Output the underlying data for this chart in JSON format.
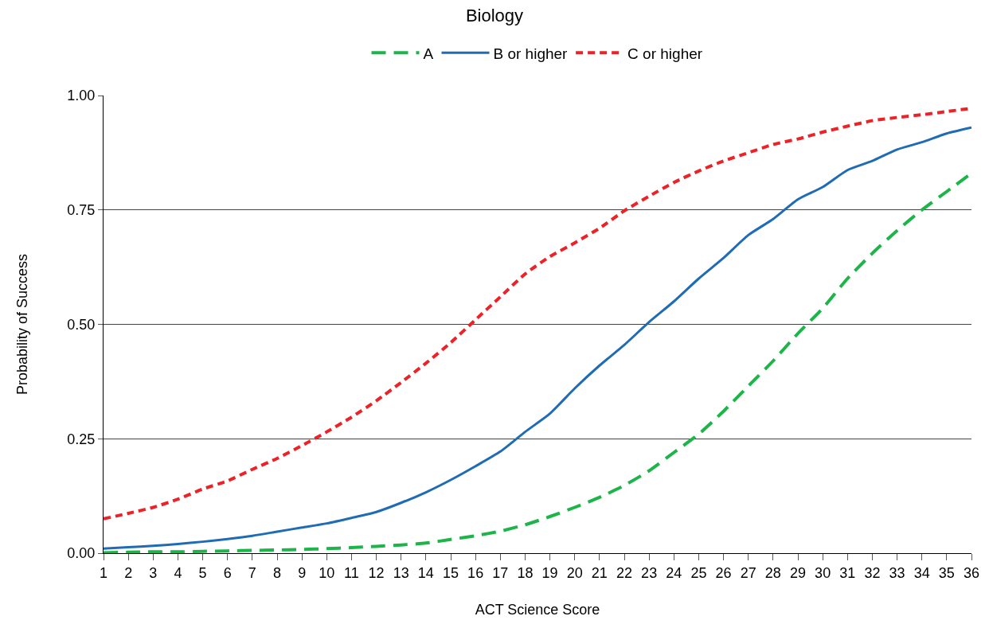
{
  "chart_data": {
    "type": "line",
    "title": "Biology",
    "xlabel": "ACT Science Score",
    "ylabel": "Probability of Success",
    "x": [
      1,
      2,
      3,
      4,
      5,
      6,
      7,
      8,
      9,
      10,
      11,
      12,
      13,
      14,
      15,
      16,
      17,
      18,
      19,
      20,
      21,
      22,
      23,
      24,
      25,
      26,
      27,
      28,
      29,
      30,
      31,
      32,
      33,
      34,
      35,
      36
    ],
    "xlim": [
      1,
      36
    ],
    "xticks": [
      1,
      2,
      3,
      4,
      5,
      6,
      7,
      8,
      9,
      10,
      11,
      12,
      13,
      14,
      15,
      16,
      17,
      18,
      19,
      20,
      21,
      22,
      23,
      24,
      25,
      26,
      27,
      28,
      29,
      30,
      31,
      32,
      33,
      34,
      35,
      36
    ],
    "ylim": [
      0,
      1
    ],
    "yticks": [
      {
        "value": 0,
        "label": "0.00"
      },
      {
        "value": 0.25,
        "label": "0.25"
      },
      {
        "value": 0.5,
        "label": "0.50"
      },
      {
        "value": 0.75,
        "label": "0.75"
      },
      {
        "value": 1,
        "label": "1.00"
      }
    ],
    "grid": "y",
    "legend": "top",
    "marker": "none",
    "series": [
      {
        "name": "A",
        "color": "#1db54a",
        "line_style": "dashed",
        "values": [
          0.001,
          0.002,
          0.003,
          0.003,
          0.004,
          0.005,
          0.006,
          0.007,
          0.008,
          0.01,
          0.012,
          0.015,
          0.018,
          0.022,
          0.03,
          0.038,
          0.048,
          0.062,
          0.08,
          0.1,
          0.122,
          0.148,
          0.18,
          0.22,
          0.26,
          0.31,
          0.365,
          0.42,
          0.48,
          0.535,
          0.6,
          0.655,
          0.705,
          0.75,
          0.79,
          0.83
        ]
      },
      {
        "name": "B or higher",
        "color": "#1f6cb5",
        "line_style": "solid",
        "values": [
          0.01,
          0.013,
          0.016,
          0.02,
          0.025,
          0.031,
          0.038,
          0.047,
          0.056,
          0.065,
          0.077,
          0.09,
          0.11,
          0.133,
          0.16,
          0.19,
          0.222,
          0.265,
          0.305,
          0.36,
          0.41,
          0.455,
          0.505,
          0.55,
          0.6,
          0.645,
          0.695,
          0.73,
          0.773,
          0.8,
          0.837,
          0.857,
          0.882,
          0.898,
          0.917,
          0.93
        ]
      },
      {
        "name": "C or higher",
        "color": "#ec2227",
        "line_style": "dotted",
        "values": [
          0.075,
          0.087,
          0.1,
          0.118,
          0.14,
          0.158,
          0.183,
          0.207,
          0.235,
          0.265,
          0.297,
          0.333,
          0.373,
          0.415,
          0.46,
          0.51,
          0.56,
          0.61,
          0.648,
          0.678,
          0.71,
          0.748,
          0.78,
          0.81,
          0.835,
          0.857,
          0.875,
          0.893,
          0.905,
          0.92,
          0.933,
          0.945,
          0.952,
          0.958,
          0.965,
          0.972
        ]
      }
    ]
  }
}
